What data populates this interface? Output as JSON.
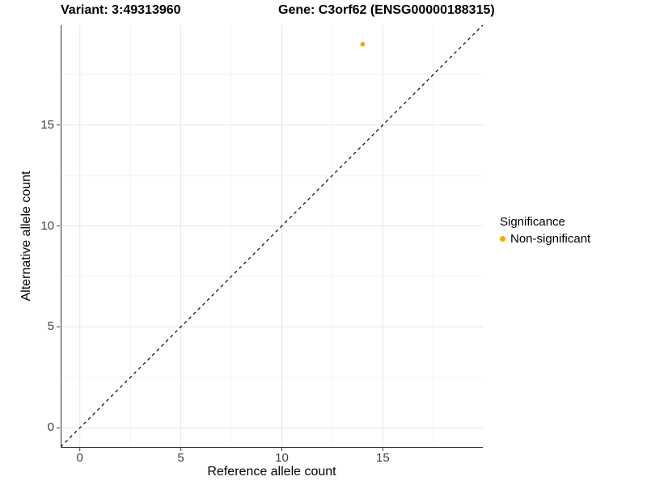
{
  "header": {
    "variant_title": "Variant: 3:49313960",
    "gene_title": "Gene: C3orf62 (ENSG00000188315)"
  },
  "chart_data": {
    "type": "scatter",
    "xlabel": "Reference allele count",
    "ylabel": "Alternative allele count",
    "xlim": [
      -0.95,
      19.95
    ],
    "ylim": [
      -0.95,
      19.95
    ],
    "x_ticks": [
      0,
      5,
      10,
      15
    ],
    "y_ticks": [
      0,
      5,
      10,
      15
    ],
    "x_minor_ticks": [
      2.5,
      7.5,
      12.5,
      17.5
    ],
    "y_minor_ticks": [
      2.5,
      7.5,
      12.5,
      17.5
    ],
    "grid": "on",
    "identity_line": {
      "slope": 1,
      "intercept": 0,
      "style": "dashed",
      "color": "#000000"
    },
    "series": [
      {
        "name": "Non-significant",
        "color": "#FFA500",
        "points": [
          {
            "x": 14,
            "y": 19
          }
        ]
      }
    ],
    "legend": {
      "title": "Significance",
      "position": "right",
      "entries": [
        {
          "label": "Non-significant",
          "color": "#FFA500"
        }
      ]
    },
    "colors": {
      "grid_major": "#E5E5E5",
      "grid_minor": "#F2F2F2",
      "axis_line": "#333333",
      "tick_label": "#404040"
    }
  }
}
